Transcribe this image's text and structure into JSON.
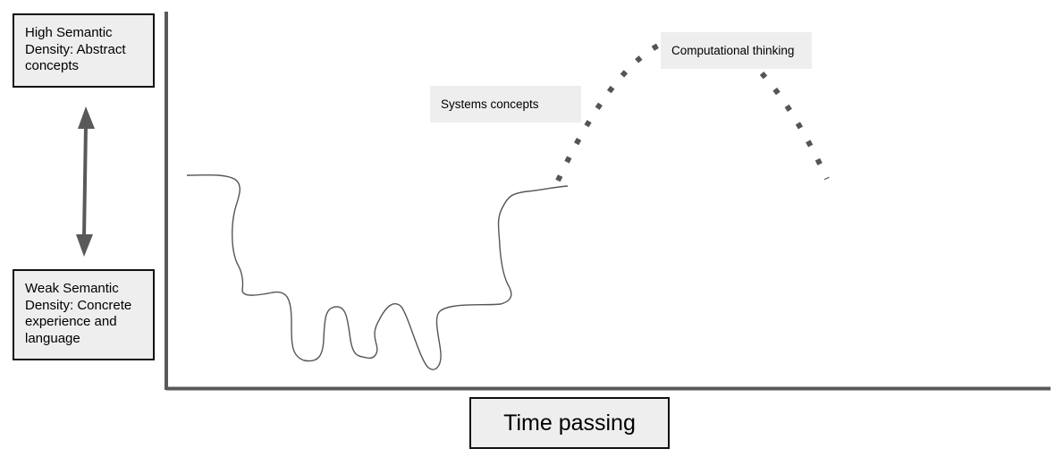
{
  "y_axis": {
    "top_label": "High Semantic Density: Abstract concepts",
    "bottom_label": "Weak Semantic Density: Concrete experience and language"
  },
  "x_axis": {
    "label": "Time passing"
  },
  "annotations": {
    "systems": "Systems concepts",
    "computational": "Computational thinking"
  },
  "colors": {
    "axis": "#595959",
    "line": "#555555",
    "box_fill": "#eeeeee"
  }
}
